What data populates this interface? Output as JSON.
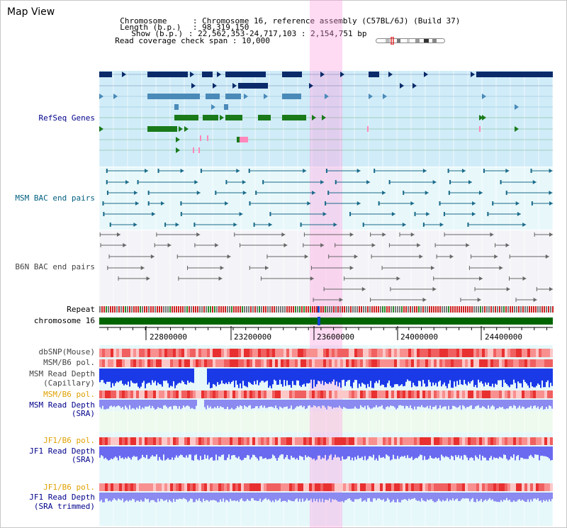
{
  "title": "Map View",
  "info": {
    "chromosome_label": "Chromosome",
    "chromosome_value": "Chromosome 16, reference assembly (C57BL/6J) (Build 37)",
    "length_label": "Length (b.p.)",
    "length_value": "98,319,150",
    "show_label": "Show (b.p.)",
    "show_value": "22,562,353-24,717,103 : 2,154,751 bp",
    "coverage_label": "Read coverage check span",
    "coverage_value": "10,000"
  },
  "tracks": {
    "refseq": "RefSeq Genes",
    "msm_bac": "MSM BAC end pairs",
    "b6n_bac": "B6N BAC end pairs",
    "repeat": "Repeat",
    "chromosome": "chromosome 16",
    "dbsnp": "dbSNP(Mouse)",
    "msm_b6_pol_1": "MSM/B6 pol.",
    "msm_depth_cap_1": "MSM Read Depth",
    "msm_depth_cap_2": "(Capillary)",
    "msm_b6_pol_2": "MSM/B6 pol.",
    "msm_depth_sra_1": "MSM Read Depth",
    "msm_depth_sra_2": "(SRA)",
    "jf1_pol_1": "JF1/B6 pol.",
    "jf1_depth_sra_1": "JF1 Read Depth",
    "jf1_depth_sra_2": "(SRA)",
    "jf1_pol_2": "JF1/B6 pol.",
    "jf1_depth_trim_1": "JF1 Read Depth",
    "jf1_depth_trim_2": "(SRA trimmed)"
  },
  "axis": {
    "ticks": [
      "22800000",
      "23200000",
      "23600000",
      "24000000",
      "24400000"
    ]
  },
  "colors": {
    "label_blue": "#00008b",
    "label_teal": "#006080",
    "label_gray": "#444444",
    "label_orange": "#e0a000",
    "label_black": "#000000",
    "highlight": "#ffccee",
    "refseq_bg": "#d0ecf8",
    "msm_bac_bg": "#e8f8fa",
    "b6n_bac_bg": "#f4f4f8",
    "chromosome_bar": "#006400"
  }
}
